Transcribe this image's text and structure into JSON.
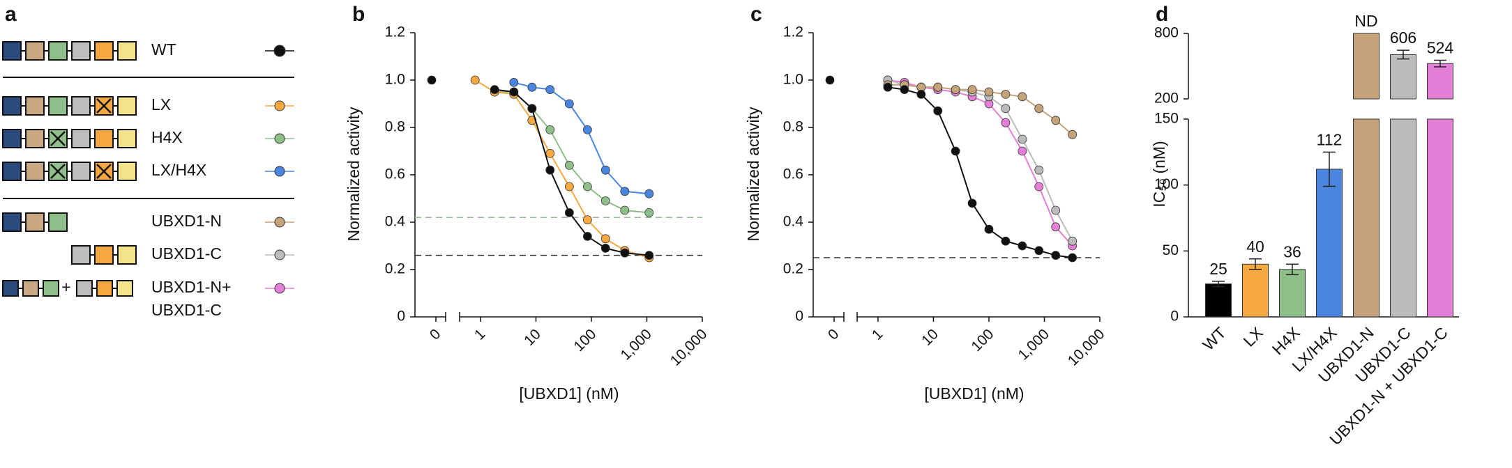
{
  "panel_labels": [
    "a",
    "b",
    "c",
    "d"
  ],
  "legend": {
    "join": "+",
    "entries": [
      {
        "label": [
          "WT"
        ],
        "color": "#111111"
      },
      {
        "label": [
          "LX"
        ],
        "color": "#f7a941"
      },
      {
        "label": [
          "H4X"
        ],
        "color": "#8fbf88"
      },
      {
        "label": [
          "LX/H4X"
        ],
        "color": "#4a86e0"
      },
      {
        "label": [
          "UBXD1-N"
        ],
        "color": "#c4a27a"
      },
      {
        "label": [
          "UBXD1-C"
        ],
        "color": "#bcbcbc"
      },
      {
        "label": [
          "UBXD1-N+",
          "UBXD1-C"
        ],
        "color": "#e47fd8"
      }
    ]
  },
  "chart_data": [
    {
      "type": "scatter",
      "xscale": "log",
      "xlabel": "[UBXD1] (nM)",
      "ylabel": "Normalized activity",
      "xlim": [
        0.5,
        10000
      ],
      "xticks": [
        1,
        10,
        100,
        {
          "value": 1000,
          "label": "1,000"
        },
        {
          "value": 10000,
          "label": "10,000"
        }
      ],
      "zero_tick": 0,
      "ylim": [
        0,
        1.2
      ],
      "yticks": [
        0,
        0.2,
        0.4,
        0.6,
        0.8,
        {
          "value": 1,
          "label": "1.0"
        },
        1.2
      ],
      "reference_lines": [
        {
          "y": 0.42,
          "color": "#8fbf88"
        },
        {
          "y": 0.26,
          "color": "#333333"
        }
      ],
      "x": [
        0.8,
        1.8,
        4,
        8.5,
        18,
        40,
        85,
        180,
        400,
        1100
      ],
      "series": [
        {
          "color": "#111111",
          "zero_value": 1.0,
          "values": [
            null,
            0.96,
            0.95,
            0.88,
            0.62,
            0.44,
            0.34,
            0.29,
            0.27,
            0.26
          ]
        },
        {
          "color": "#f7a941",
          "values": [
            1.0,
            0.95,
            0.94,
            0.83,
            0.69,
            0.55,
            0.41,
            0.33,
            0.28,
            0.25
          ]
        },
        {
          "color": "#8fbf88",
          "values": [
            null,
            0.95,
            0.95,
            0.88,
            0.79,
            0.64,
            0.55,
            0.49,
            0.45,
            0.44
          ]
        },
        {
          "color": "#4a86e0",
          "values": [
            null,
            null,
            0.99,
            0.97,
            0.96,
            0.9,
            0.79,
            0.62,
            0.53,
            0.52
          ]
        }
      ]
    },
    {
      "type": "scatter",
      "xscale": "log",
      "xlabel": "[UBXD1] (nM)",
      "ylabel": "Normalized activity",
      "xlim": [
        0.5,
        10000
      ],
      "xticks": [
        1,
        10,
        100,
        {
          "value": 1000,
          "label": "1,000"
        },
        {
          "value": 10000,
          "label": "10,000"
        }
      ],
      "zero_tick": 0,
      "ylim": [
        0,
        1.2
      ],
      "yticks": [
        0,
        0.2,
        0.4,
        0.6,
        0.8,
        {
          "value": 1,
          "label": "1.0"
        },
        1.2
      ],
      "reference_lines": [
        {
          "y": 0.25,
          "color": "#333333"
        }
      ],
      "x": [
        1.5,
        3,
        6,
        12,
        25,
        50,
        100,
        200,
        400,
        800,
        1600,
        3200
      ],
      "series": [
        {
          "color": "#111111",
          "zero_value": 1.0,
          "values": [
            0.97,
            0.96,
            0.94,
            0.87,
            0.7,
            0.48,
            0.37,
            0.32,
            0.3,
            0.28,
            0.26,
            0.25
          ]
        },
        {
          "color": "#c4a27a",
          "values": [
            0.98,
            0.98,
            0.97,
            0.97,
            0.96,
            0.96,
            0.95,
            0.94,
            0.93,
            0.88,
            0.83,
            0.77
          ]
        },
        {
          "color": "#bcbcbc",
          "values": [
            1.0,
            0.98,
            0.97,
            0.97,
            0.96,
            0.95,
            0.93,
            0.88,
            0.75,
            0.62,
            0.45,
            0.32
          ]
        },
        {
          "color": "#e47fd8",
          "values": [
            1.0,
            0.99,
            0.97,
            0.96,
            0.95,
            0.93,
            0.9,
            0.82,
            0.7,
            0.55,
            0.38,
            0.3
          ]
        }
      ]
    },
    {
      "type": "bar",
      "ylabel": "IC₅₀ (nM)",
      "categories": [
        "WT",
        "LX",
        "H4X",
        "LX/H4X",
        "UBXD1-N",
        "UBXD1-C",
        "UBXD1-N + UBXD1-C"
      ],
      "values": [
        25,
        40,
        36,
        112,
        null,
        606,
        524
      ],
      "errors": [
        2,
        4,
        4,
        13,
        null,
        40,
        30
      ],
      "value_labels": [
        "25",
        "40",
        "36",
        "112",
        "ND",
        "606",
        "524"
      ],
      "colors": [
        "#000000",
        "#f7a941",
        "#8fbf88",
        "#4a86e0",
        "#c4a27a",
        "#bcbcbc",
        "#e47fd8"
      ],
      "ylim": [
        0,
        150
      ],
      "yticks": [
        0,
        50,
        100,
        150
      ],
      "y_upper_lim": [
        200,
        800
      ],
      "y_upper_ticks": [
        200,
        800
      ]
    }
  ]
}
